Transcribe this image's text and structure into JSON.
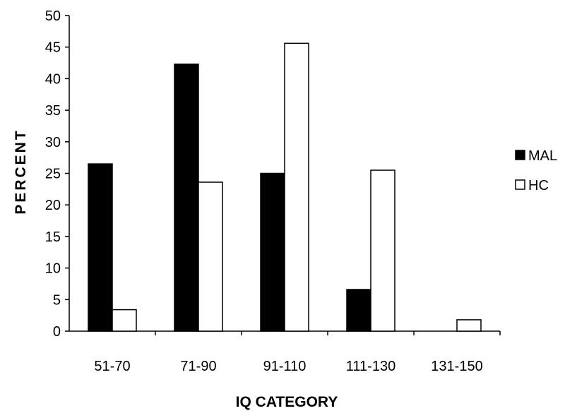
{
  "chart_data": {
    "type": "bar",
    "title": "",
    "xlabel": "IQ CATEGORY",
    "ylabel": "PERCENT",
    "ylim": [
      0,
      50
    ],
    "yticks": [
      0,
      5,
      10,
      15,
      20,
      25,
      30,
      35,
      40,
      45,
      50
    ],
    "grid": false,
    "legend_position": "right",
    "categories": [
      "51-70",
      "71-90",
      "91-110",
      "111-130",
      "131-150"
    ],
    "series": [
      {
        "name": "MAL",
        "values": [
          26.5,
          42.3,
          25.0,
          6.6,
          0
        ],
        "color": "#000000"
      },
      {
        "name": "HC",
        "values": [
          3.4,
          23.6,
          45.6,
          25.5,
          1.8
        ],
        "color": "#ffffff"
      }
    ]
  }
}
